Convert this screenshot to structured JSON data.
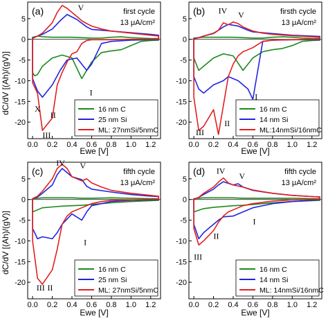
{
  "figure": {
    "ylabel": "dC/dV  [(Ah)/(gV)]",
    "xlabel": "Ewe [V]"
  },
  "chart_data": [
    {
      "type": "line",
      "panel_label": "(a)",
      "cycle_text": "first cycle",
      "current_text": "13 μA/cm²",
      "xlabel": "Ewe [V]",
      "ylabel": "dC/dV  [(Ah)/(gV)]",
      "xlim": [
        -0.05,
        1.3
      ],
      "ylim": [
        -24,
        9
      ],
      "xticks": [
        0.0,
        0.2,
        0.4,
        0.6,
        0.8,
        1.0,
        1.2
      ],
      "yticks": [
        -20,
        -15,
        -10,
        -5,
        0,
        5
      ],
      "legend_position": "bottom-right",
      "colors": {
        "c": "#1a8a1a",
        "si": "#1f24e0",
        "ml": "#e01f1f"
      },
      "series": [
        {
          "name": "16 nm C",
          "color_key": "c",
          "x": [
            0.0,
            0.02,
            0.05,
            0.1,
            0.2,
            0.3,
            0.4,
            0.5,
            0.6,
            0.7,
            0.8,
            0.9,
            1.0,
            1.1,
            1.2,
            1.28
          ],
          "y": [
            0.5,
            0.6,
            0.8,
            0.6,
            0.5,
            0.5,
            0.5,
            0.4,
            0.3,
            0.3,
            0.5,
            0.6,
            0.4,
            0.3,
            0.2,
            0.2
          ],
          "y_lower": [
            -8,
            -8.8,
            -8.5,
            -6.5,
            -4.5,
            -3.8,
            -4.5,
            -9.5,
            -5.5,
            -3.2,
            -2.8,
            -2.5,
            -1.5,
            -0.5,
            -0.3,
            -0.2
          ]
        },
        {
          "name": "25 nm Si",
          "color_key": "si",
          "x": [
            0.0,
            0.05,
            0.1,
            0.2,
            0.28,
            0.35,
            0.45,
            0.55,
            0.6,
            0.7,
            0.8,
            1.0,
            1.2,
            1.28
          ],
          "y": [
            0.3,
            0.8,
            1.2,
            2.5,
            4.5,
            6.0,
            4.8,
            3.0,
            2.4,
            2.2,
            2.0,
            1.6,
            1.2,
            1.0
          ],
          "y_lower": [
            -9.5,
            -12.5,
            -14.0,
            -11.0,
            -7.5,
            -5.0,
            -4.5,
            -7.5,
            -6.0,
            -1.0,
            -0.5,
            -0.2,
            -0.1,
            -0.1
          ]
        },
        {
          "name": "ML: 27nmSi/5nmC",
          "color_key": "ml",
          "x": [
            0.0,
            0.05,
            0.1,
            0.2,
            0.25,
            0.3,
            0.35,
            0.4,
            0.45,
            0.5,
            0.55,
            0.6,
            0.7,
            0.8,
            1.0,
            1.2,
            1.28
          ],
          "y": [
            0.2,
            0.8,
            1.5,
            4.0,
            6.5,
            8.2,
            7.5,
            6.5,
            5.5,
            4.5,
            3.8,
            3.2,
            2.5,
            2.0,
            1.5,
            1.0,
            0.8
          ],
          "y_lower": [
            -10.5,
            -13.0,
            -22.0,
            -19.0,
            -11.0,
            -8.0,
            -5.5,
            -3.5,
            -3.0,
            -1.0,
            -0.3,
            -0.1,
            -0.1,
            -0.1,
            0.0,
            0.0,
            0.0
          ]
        }
      ],
      "annotations": [
        {
          "text": "V",
          "x": 0.46,
          "y": 7.0
        },
        {
          "text": "I",
          "x": 0.58,
          "y": -13.5
        },
        {
          "text": "X",
          "x": 0.02,
          "y": -17.5
        },
        {
          "text": "II",
          "x": 0.18,
          "y": -19.0
        },
        {
          "text": "III",
          "x": 0.1,
          "y": -23.8
        }
      ]
    },
    {
      "type": "line",
      "panel_label": "(b)",
      "cycle_text": "firsth cycle",
      "current_text": "13 μA/cm²",
      "xlabel": "Ewe [V]",
      "ylabel": "dC/dV  [(Ah)/(gV)]",
      "xlim": [
        -0.05,
        1.3
      ],
      "ylim": [
        -24,
        9
      ],
      "xticks": [
        0.0,
        0.2,
        0.4,
        0.6,
        0.8,
        1.0,
        1.2
      ],
      "yticks": [
        -20,
        -15,
        -10,
        -5,
        0,
        5
      ],
      "legend_position": "bottom-right",
      "colors": {
        "c": "#1a8a1a",
        "si": "#1f24e0",
        "ml": "#e01f1f"
      },
      "series": [
        {
          "name": "16 nm C",
          "color_key": "c",
          "x": [
            0.0,
            0.05,
            0.1,
            0.2,
            0.3,
            0.4,
            0.5,
            0.6,
            0.7,
            0.8,
            0.9,
            1.0,
            1.1,
            1.2,
            1.28
          ],
          "y": [
            0.3,
            0.4,
            0.5,
            0.5,
            0.5,
            0.5,
            0.4,
            0.3,
            0.3,
            0.5,
            0.6,
            0.5,
            0.3,
            0.2,
            0.2
          ],
          "y_lower": [
            -4.5,
            -7.5,
            -6.5,
            -4.5,
            -3.5,
            -4.0,
            -7.5,
            -4.5,
            -3.0,
            -2.5,
            -2.2,
            -1.5,
            -0.5,
            -0.3,
            -0.2
          ]
        },
        {
          "name": "14 nm Si",
          "color_key": "si",
          "x": [
            0.0,
            0.05,
            0.1,
            0.2,
            0.3,
            0.35,
            0.45,
            0.55,
            0.6,
            0.7,
            0.8,
            1.0,
            1.2,
            1.28
          ],
          "y": [
            0.2,
            0.4,
            0.8,
            1.4,
            3.0,
            3.6,
            3.2,
            2.2,
            1.8,
            1.6,
            1.4,
            1.0,
            0.8,
            0.7
          ],
          "y_lower": [
            -9.0,
            -12.0,
            -13.0,
            -11.0,
            -10.0,
            -9.0,
            -10.0,
            -12.0,
            -14.5,
            -0.5,
            -0.2,
            -0.1,
            -0.1,
            -0.1
          ]
        },
        {
          "name": "ML:14nmSi/16nmC",
          "color_key": "ml",
          "x": [
            0.0,
            0.05,
            0.1,
            0.2,
            0.25,
            0.3,
            0.35,
            0.4,
            0.45,
            0.5,
            0.55,
            0.6,
            0.7,
            0.8,
            1.0,
            1.2,
            1.28
          ],
          "y": [
            0.1,
            0.4,
            0.8,
            1.5,
            2.2,
            4.0,
            3.5,
            4.2,
            3.8,
            3.0,
            2.5,
            2.0,
            1.5,
            1.2,
            0.9,
            0.6,
            0.5
          ],
          "y_lower": [
            -14.0,
            -22.0,
            -21.0,
            -17.0,
            -23.0,
            -16.0,
            -9.0,
            -6.0,
            -4.0,
            -3.0,
            -2.5,
            -2.0,
            -0.5,
            -0.2,
            -0.1,
            0.0,
            0.0
          ]
        }
      ],
      "annotations": [
        {
          "text": "IV",
          "x": 0.25,
          "y": 6.2
        },
        {
          "text": "V",
          "x": 0.45,
          "y": 5.2
        },
        {
          "text": "I",
          "x": 0.62,
          "y": -14.5
        },
        {
          "text": "II",
          "x": 0.31,
          "y": -21.0
        },
        {
          "text": "III",
          "x": 0.02,
          "y": -23.2
        }
      ]
    },
    {
      "type": "line",
      "panel_label": "(c)",
      "cycle_text": "fifth cycle",
      "current_text": "13 μA/cm²",
      "xlabel": "Ewe [V]",
      "ylabel": "dC/dV  [(Ah)/(gV)]",
      "xlim": [
        -0.05,
        1.3
      ],
      "ylim": [
        -24,
        9
      ],
      "xticks": [
        0.0,
        0.2,
        0.4,
        0.6,
        0.8,
        1.0,
        1.2
      ],
      "yticks": [
        -20,
        -15,
        -10,
        -5,
        0,
        5
      ],
      "legend_position": "bottom-right",
      "colors": {
        "c": "#1a8a1a",
        "si": "#1f24e0",
        "ml": "#e01f1f"
      },
      "series": [
        {
          "name": "16 nm C",
          "color_key": "c",
          "x": [
            0.0,
            0.05,
            0.1,
            0.2,
            0.3,
            0.4,
            0.5,
            0.6,
            0.8,
            1.0,
            1.2,
            1.28
          ],
          "y": [
            0.2,
            0.3,
            0.4,
            0.4,
            0.4,
            0.4,
            0.3,
            0.3,
            0.4,
            0.3,
            0.2,
            0.2
          ],
          "y_lower": [
            -3.0,
            -2.5,
            -2.0,
            -1.8,
            -1.6,
            -1.5,
            -1.4,
            -1.2,
            -0.8,
            -0.5,
            -0.3,
            -0.2
          ]
        },
        {
          "name": "25 nm Si",
          "color_key": "si",
          "x": [
            0.0,
            0.05,
            0.1,
            0.2,
            0.25,
            0.3,
            0.4,
            0.5,
            0.55,
            0.6,
            0.8,
            1.0,
            1.2,
            1.28
          ],
          "y": [
            0.2,
            0.6,
            1.5,
            3.5,
            6.0,
            7.5,
            5.5,
            4.8,
            3.2,
            2.5,
            1.8,
            1.2,
            0.8,
            0.7
          ],
          "y_lower": [
            -7.0,
            -9.5,
            -9.0,
            -9.5,
            -8.0,
            -6.0,
            -3.5,
            -5.0,
            -3.0,
            -1.5,
            -0.5,
            -0.2,
            -0.1,
            -0.1
          ]
        },
        {
          "name": "ML: 27nmSi/5nmC",
          "color_key": "ml",
          "x": [
            0.0,
            0.05,
            0.1,
            0.2,
            0.25,
            0.3,
            0.35,
            0.4,
            0.5,
            0.55,
            0.6,
            0.7,
            0.8,
            1.0,
            1.2,
            1.28
          ],
          "y": [
            0.2,
            0.8,
            2.0,
            5.0,
            7.5,
            8.5,
            7.5,
            5.5,
            4.5,
            5.0,
            4.0,
            3.0,
            2.2,
            1.5,
            1.0,
            0.8
          ],
          "y_lower": [
            -10.0,
            -19.0,
            -20.5,
            -17.0,
            -12.0,
            -6.0,
            -4.0,
            -3.0,
            -2.0,
            -1.5,
            -1.0,
            -0.5,
            -0.2,
            -0.1,
            0.0,
            0.0
          ]
        }
      ],
      "annotations": [
        {
          "text": "IV",
          "x": 0.24,
          "y": 8.2
        },
        {
          "text": "V",
          "x": 0.48,
          "y": 7.5
        },
        {
          "text": "I",
          "x": 0.52,
          "y": -11.0
        },
        {
          "text": "III",
          "x": 0.04,
          "y": -22.0
        },
        {
          "text": "II",
          "x": 0.15,
          "y": -22.0
        }
      ]
    },
    {
      "type": "line",
      "panel_label": "(d)",
      "cycle_text": "fifth cycle",
      "current_text": "13 μA/cm²",
      "xlabel": "Ewe [V]",
      "ylabel": "dC/dV  [(Ah)/(gV)]",
      "xlim": [
        -0.05,
        1.3
      ],
      "ylim": [
        -24,
        9
      ],
      "xticks": [
        0.0,
        0.2,
        0.4,
        0.6,
        0.8,
        1.0,
        1.2
      ],
      "yticks": [
        -20,
        -15,
        -10,
        -5,
        0,
        5
      ],
      "legend_position": "bottom-right",
      "colors": {
        "c": "#1a8a1a",
        "si": "#1f24e0",
        "ml": "#e01f1f"
      },
      "series": [
        {
          "name": "16 nm C",
          "color_key": "c",
          "x": [
            0.0,
            0.05,
            0.1,
            0.2,
            0.3,
            0.4,
            0.5,
            0.6,
            0.8,
            1.0,
            1.2,
            1.28
          ],
          "y": [
            0.2,
            0.3,
            0.4,
            0.4,
            0.4,
            0.4,
            0.3,
            0.3,
            0.3,
            0.3,
            0.2,
            0.2
          ],
          "y_lower": [
            -3.0,
            -2.6,
            -2.2,
            -1.9,
            -1.7,
            -1.5,
            -1.4,
            -1.2,
            -0.8,
            -0.5,
            -0.3,
            -0.2
          ]
        },
        {
          "name": "14 nm Si",
          "color_key": "si",
          "x": [
            0.0,
            0.05,
            0.1,
            0.2,
            0.25,
            0.3,
            0.4,
            0.45,
            0.5,
            0.6,
            0.8,
            1.0,
            1.2,
            1.28
          ],
          "y": [
            0.1,
            0.5,
            1.2,
            2.5,
            3.5,
            4.3,
            3.5,
            3.8,
            3.0,
            2.2,
            1.5,
            1.0,
            0.7,
            0.6
          ],
          "y_lower": [
            -6.0,
            -9.5,
            -8.0,
            -6.0,
            -5.0,
            -4.2,
            -4.0,
            -3.5,
            -3.0,
            -2.0,
            -1.0,
            -0.5,
            -0.2,
            -0.1
          ]
        },
        {
          "name": "ML: 14nmSi/16nmC",
          "color_key": "ml",
          "x": [
            0.0,
            0.05,
            0.1,
            0.2,
            0.25,
            0.3,
            0.35,
            0.4,
            0.5,
            0.6,
            0.8,
            1.0,
            1.2,
            1.28
          ],
          "y": [
            0.1,
            0.5,
            1.5,
            3.0,
            4.2,
            5.2,
            4.0,
            3.5,
            3.0,
            2.3,
            1.5,
            1.0,
            0.7,
            0.6
          ],
          "y_lower": [
            -7.0,
            -11.0,
            -10.0,
            -7.5,
            -5.5,
            -4.0,
            -3.0,
            -2.5,
            -1.5,
            -1.0,
            -0.4,
            -0.1,
            0.0,
            0.0
          ]
        }
      ],
      "annotations": [
        {
          "text": "IV",
          "x": 0.23,
          "y": 6.2
        },
        {
          "text": "V",
          "x": 0.46,
          "y": 5.0
        },
        {
          "text": "I",
          "x": 0.6,
          "y": -6.0
        },
        {
          "text": "II",
          "x": 0.2,
          "y": -9.5
        },
        {
          "text": "III",
          "x": 0.0,
          "y": -14.5
        }
      ]
    }
  ]
}
